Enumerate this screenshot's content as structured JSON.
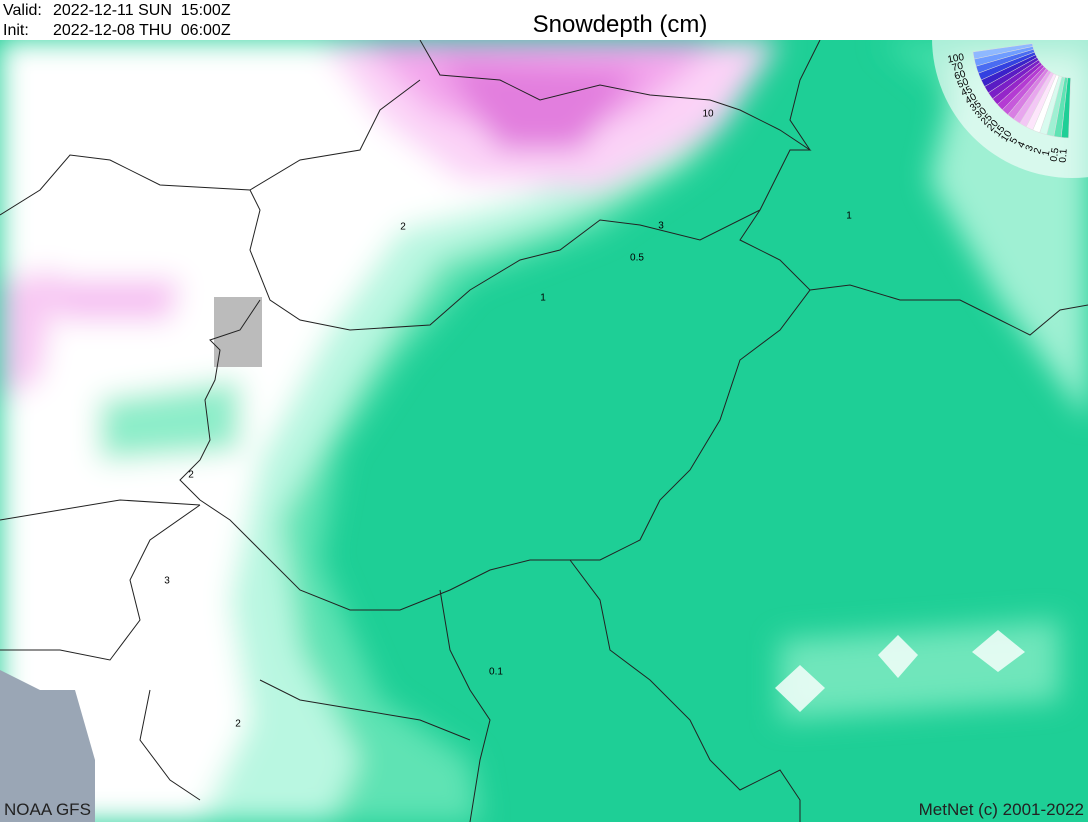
{
  "header": {
    "valid_label": "Valid:",
    "valid": "2022-12-11 SUN  15:00Z",
    "init_label": "Init:",
    "init": "2022-12-08 THU  06:00Z",
    "title": "Snowdepth (cm)"
  },
  "contour_labels": [
    "10",
    "3",
    "0.5",
    "1",
    "2",
    "1",
    "2",
    "3",
    "0.1",
    "2"
  ],
  "legend": [
    "100",
    "70",
    "60",
    "50",
    "45",
    "40",
    "35",
    "30",
    "25",
    "20",
    "15",
    "10",
    "5",
    "4",
    "3",
    "2",
    "1",
    "0.5",
    "0.1"
  ],
  "footer": {
    "source": "NOAA GFS",
    "credit": "MetNet (c) 2001-2022"
  }
}
